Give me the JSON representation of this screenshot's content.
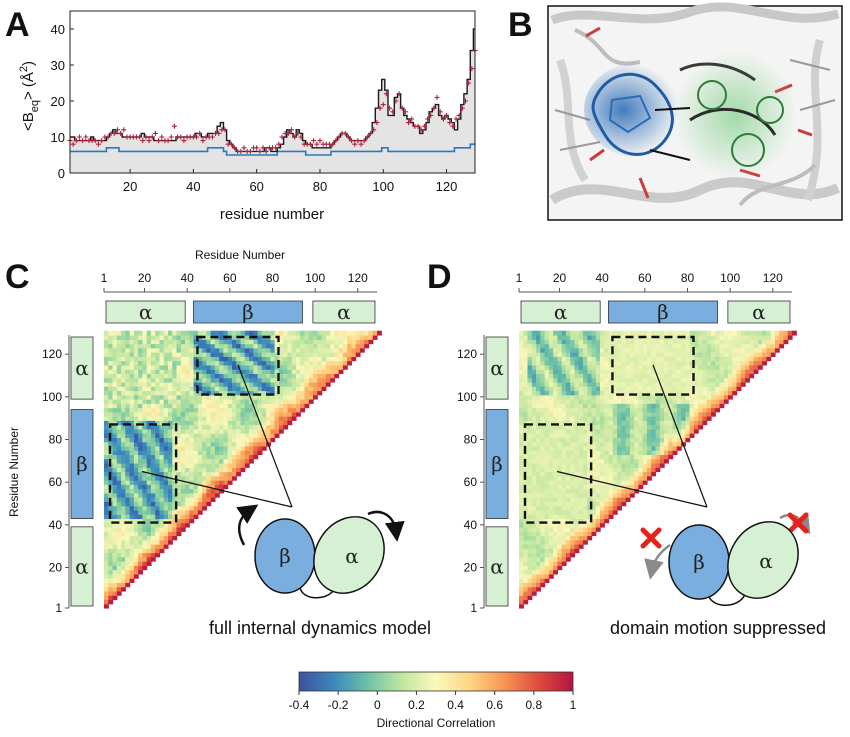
{
  "panels": {
    "a": {
      "letter": "A"
    },
    "b": {
      "letter": "B"
    },
    "c": {
      "letter": "C",
      "caption": "full internal dynamics model"
    },
    "d": {
      "letter": "D",
      "caption": "domain motion suppressed"
    }
  },
  "matrix_axes": {
    "top_title": "Residue Number",
    "side_title": "Residue Number",
    "top_ticks": [
      "1",
      "20",
      "40",
      "60",
      "80",
      "100",
      "120"
    ],
    "side_ticks": [
      "1",
      "20",
      "40",
      "60",
      "80",
      "100",
      "120"
    ]
  },
  "secondary_structure": [
    {
      "label": "α",
      "type": "alpha",
      "start": 1,
      "end": 40
    },
    {
      "label": "β",
      "type": "beta",
      "start": 42,
      "end": 95
    },
    {
      "label": "α",
      "type": "alpha",
      "start": 98,
      "end": 129
    }
  ],
  "domain_cartoon": {
    "beta_label": "β",
    "alpha_label": "α"
  },
  "colors": {
    "alpha_fill": "#d6f0d4",
    "beta_fill": "#7aaede",
    "bfactor_calc": "#1a1a1a",
    "bfactor_exp": "#b0203a",
    "bfactor_fixed": "#2a79c0",
    "shade": "#e4e4e4",
    "cross": "#e8201c"
  },
  "chart_data": [
    {
      "type": "line",
      "panel": "A",
      "xlabel": "residue number",
      "ylabel": "<Beq> (Å²)",
      "ylabel_parts": {
        "main": "<B",
        "sub": "eq",
        "rest": "> (Å",
        "sup": "2",
        "close": ")"
      },
      "xlim": [
        1,
        129
      ],
      "ylim": [
        0,
        45
      ],
      "xticks": [
        20,
        40,
        60,
        80,
        100,
        120
      ],
      "yticks": [
        0,
        10,
        20,
        30,
        40
      ],
      "grid": false,
      "series": [
        {
          "key": "full",
          "style": "step",
          "values": [
            10,
            10,
            9,
            9,
            9,
            9,
            9,
            10,
            9,
            9,
            9,
            9,
            10,
            11,
            12,
            11,
            11,
            10,
            10,
            10,
            10,
            10,
            10,
            11,
            10,
            10,
            10,
            9,
            9,
            9,
            9,
            9,
            9,
            9,
            10,
            10,
            10,
            10,
            10,
            10,
            11,
            11,
            10,
            10,
            11,
            11,
            11,
            13,
            14,
            12,
            9,
            8,
            7,
            6,
            6,
            6,
            6,
            6,
            6,
            6,
            6,
            6,
            7,
            7,
            6,
            6,
            7,
            8,
            10,
            12,
            11,
            10,
            12,
            11,
            9,
            8,
            8,
            7,
            7,
            7,
            7,
            7,
            7,
            8,
            9,
            10,
            11,
            11,
            10,
            9,
            9,
            9,
            9,
            9,
            10,
            11,
            14,
            18,
            23,
            26,
            23,
            16,
            16,
            21,
            22,
            18,
            16,
            15,
            14,
            13,
            13,
            11,
            12,
            14,
            17,
            18,
            19,
            16,
            15,
            16,
            15,
            14,
            12,
            15,
            19,
            22,
            26,
            34,
            40
          ]
        },
        {
          "key": "experimental",
          "style": "markers",
          "values": [
            9,
            8,
            9,
            10,
            9,
            10,
            9,
            9,
            9,
            8,
            9,
            10,
            10,
            11,
            11,
            12,
            11,
            12,
            10,
            10,
            10,
            10,
            10,
            9,
            10,
            9,
            10,
            11,
            9,
            10,
            9,
            9,
            10,
            13,
            10,
            10,
            9,
            10,
            10,
            10,
            10,
            11,
            9,
            10,
            10,
            10,
            11,
            11,
            12,
            12,
            8,
            8,
            7,
            6,
            6,
            7,
            6,
            6,
            7,
            7,
            6,
            7,
            6,
            7,
            7,
            7,
            8,
            10,
            11,
            11,
            12,
            10,
            11,
            10,
            8,
            8,
            8,
            9,
            8,
            9,
            8,
            8,
            8,
            8,
            9,
            10,
            11,
            11,
            10,
            9,
            8,
            9,
            8,
            9,
            10,
            11,
            12,
            14,
            18,
            19,
            22,
            18,
            17,
            20,
            22,
            18,
            17,
            14,
            15,
            13,
            13,
            12,
            13,
            15,
            16,
            18,
            21,
            17,
            15,
            16,
            14,
            13,
            15,
            16,
            18,
            20,
            25,
            29,
            34
          ]
        },
        {
          "key": "domain_fixed",
          "style": "step",
          "values": [
            6,
            6,
            6,
            6,
            6,
            6,
            6,
            6,
            6,
            6,
            6,
            6,
            7,
            7,
            7,
            7,
            6,
            6,
            6,
            6,
            6,
            6,
            6,
            6,
            6,
            6,
            6,
            6,
            6,
            6,
            6,
            6,
            6,
            6,
            6,
            6,
            6,
            6,
            6,
            6,
            6,
            6,
            6,
            6,
            7,
            7,
            7,
            7,
            7,
            6,
            5,
            5,
            5,
            5,
            5,
            5,
            5,
            5,
            5,
            5,
            5,
            5,
            5,
            5,
            5,
            5,
            6,
            6,
            6,
            6,
            6,
            6,
            6,
            6,
            6,
            5,
            5,
            5,
            5,
            5,
            5,
            5,
            5,
            6,
            6,
            6,
            6,
            6,
            6,
            6,
            6,
            6,
            6,
            6,
            6,
            6,
            6,
            6,
            6,
            7,
            7,
            6,
            6,
            6,
            6,
            6,
            6,
            6,
            6,
            6,
            6,
            6,
            6,
            6,
            6,
            6,
            6,
            6,
            6,
            6,
            6,
            6,
            7,
            7,
            7,
            7,
            7,
            8,
            8
          ]
        }
      ]
    },
    {
      "type": "heatmap",
      "panel": "C",
      "x_range": [
        1,
        129
      ],
      "y_range": [
        1,
        129
      ],
      "highlight_boxes": [
        {
          "x": [
            1,
            32
          ],
          "y": [
            42,
            88
          ]
        },
        {
          "x": [
            42,
            80
          ],
          "y": [
            102,
            129
          ]
        }
      ]
    },
    {
      "type": "heatmap",
      "panel": "D",
      "x_range": [
        1,
        129
      ],
      "y_range": [
        1,
        129
      ],
      "highlight_boxes": [
        {
          "x": [
            1,
            32
          ],
          "y": [
            42,
            88
          ]
        },
        {
          "x": [
            42,
            80
          ],
          "y": [
            102,
            129
          ]
        }
      ]
    }
  ],
  "colorbar": {
    "title": "Directional Correlation",
    "ticks": [
      "-0.4",
      "-0.2",
      "0",
      "0.2",
      "0.4",
      "0.6",
      "0.8",
      "1"
    ],
    "range": [
      -0.4,
      1
    ],
    "stops": [
      "#3f4fa1",
      "#3a88bd",
      "#6cc2a6",
      "#c0e6a0",
      "#fbf8bb",
      "#fdd483",
      "#f79553",
      "#dd4a3d",
      "#b3143f"
    ]
  }
}
